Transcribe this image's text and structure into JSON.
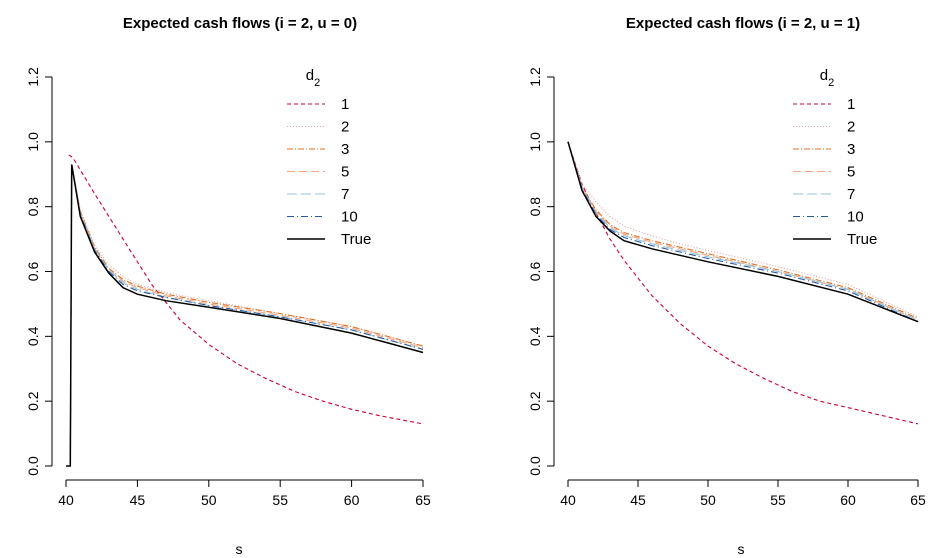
{
  "chart_data": [
    {
      "type": "line",
      "title": "Expected cash flows (i = 2, u = 0)",
      "xlabel": "s",
      "ylabel": "",
      "xlim": [
        40,
        65
      ],
      "ylim": [
        0,
        1.2
      ],
      "xticks": [
        "40",
        "45",
        "50",
        "55",
        "60",
        "65"
      ],
      "yticks": [
        "0.0",
        "0.2",
        "0.4",
        "0.6",
        "0.8",
        "1.0",
        "1.2"
      ],
      "legend": {
        "title_base": "d",
        "title_sub": "2",
        "position": "top-right"
      },
      "series": [
        {
          "name": "1",
          "color": "#cc0033",
          "dash": "4,3",
          "x": [
            40.2,
            40.5,
            42,
            44,
            46,
            48,
            50,
            52,
            54,
            56,
            58,
            60,
            62,
            65
          ],
          "y": [
            0.96,
            0.95,
            0.84,
            0.7,
            0.56,
            0.45,
            0.375,
            0.315,
            0.27,
            0.23,
            0.2,
            0.175,
            0.155,
            0.13
          ]
        },
        {
          "name": "2",
          "color": "#e8a0a0",
          "dash": "1,2",
          "x": [
            40,
            40.3,
            40.4,
            41,
            42,
            43,
            44,
            45,
            47,
            50,
            55,
            60,
            65
          ],
          "y": [
            0,
            0,
            0.93,
            0.79,
            0.68,
            0.62,
            0.585,
            0.56,
            0.535,
            0.51,
            0.47,
            0.43,
            0.37
          ]
        },
        {
          "name": "3",
          "color": "#e07020",
          "dash": "6,2,1,2",
          "x": [
            40,
            40.3,
            40.4,
            41,
            42,
            43,
            44,
            45,
            47,
            50,
            55,
            60,
            65
          ],
          "y": [
            0,
            0,
            0.93,
            0.785,
            0.675,
            0.61,
            0.575,
            0.555,
            0.53,
            0.505,
            0.47,
            0.43,
            0.37
          ]
        },
        {
          "name": "5",
          "color": "#f4a582",
          "dash": "8,4",
          "x": [
            40,
            40.3,
            40.4,
            41,
            42,
            43,
            44,
            45,
            47,
            50,
            55,
            60,
            65
          ],
          "y": [
            0,
            0,
            0.93,
            0.78,
            0.67,
            0.605,
            0.57,
            0.55,
            0.525,
            0.5,
            0.465,
            0.425,
            0.365
          ]
        },
        {
          "name": "7",
          "color": "#92c5de",
          "dash": "10,4",
          "x": [
            40,
            40.3,
            40.4,
            41,
            42,
            43,
            44,
            45,
            47,
            50,
            55,
            60,
            65
          ],
          "y": [
            0,
            0,
            0.93,
            0.78,
            0.67,
            0.605,
            0.565,
            0.545,
            0.52,
            0.495,
            0.46,
            0.42,
            0.36
          ]
        },
        {
          "name": "10",
          "color": "#2c5aa0",
          "dash": "7,3,1,3",
          "x": [
            40,
            40.3,
            40.4,
            41,
            42,
            43,
            44,
            45,
            47,
            50,
            55,
            60,
            65
          ],
          "y": [
            0,
            0,
            0.93,
            0.775,
            0.665,
            0.6,
            0.56,
            0.54,
            0.52,
            0.495,
            0.46,
            0.42,
            0.36
          ]
        },
        {
          "name": "True",
          "color": "#000000",
          "dash": "",
          "x": [
            40,
            40.3,
            40.4,
            41,
            42,
            43,
            44,
            45,
            47,
            50,
            55,
            60,
            65
          ],
          "y": [
            0,
            0,
            0.93,
            0.77,
            0.66,
            0.595,
            0.55,
            0.53,
            0.51,
            0.49,
            0.455,
            0.41,
            0.35
          ]
        }
      ]
    },
    {
      "type": "line",
      "title": "Expected cash flows (i = 2, u = 1)",
      "xlabel": "s",
      "ylabel": "",
      "xlim": [
        40,
        65
      ],
      "ylim": [
        0,
        1.2
      ],
      "xticks": [
        "40",
        "45",
        "50",
        "55",
        "60",
        "65"
      ],
      "yticks": [
        "0.0",
        "0.2",
        "0.4",
        "0.6",
        "0.8",
        "1.0",
        "1.2"
      ],
      "legend": {
        "title_base": "d",
        "title_sub": "2",
        "position": "top-right"
      },
      "series": [
        {
          "name": "1",
          "color": "#cc0033",
          "dash": "4,3",
          "x": [
            40,
            41,
            42,
            43,
            44,
            46,
            48,
            50,
            52,
            54,
            56,
            58,
            60,
            62,
            65
          ],
          "y": [
            1.0,
            0.87,
            0.78,
            0.7,
            0.635,
            0.525,
            0.44,
            0.37,
            0.315,
            0.27,
            0.23,
            0.2,
            0.18,
            0.16,
            0.13
          ]
        },
        {
          "name": "2",
          "color": "#e8a0a0",
          "dash": "1,2",
          "x": [
            40,
            41,
            42,
            43,
            44,
            46,
            48,
            50,
            55,
            60,
            65
          ],
          "y": [
            1.0,
            0.87,
            0.815,
            0.77,
            0.74,
            0.71,
            0.685,
            0.665,
            0.615,
            0.56,
            0.46
          ]
        },
        {
          "name": "3",
          "color": "#e07020",
          "dash": "6,2,1,2",
          "x": [
            40,
            41,
            42,
            43,
            44,
            46,
            48,
            50,
            55,
            60,
            65
          ],
          "y": [
            1.0,
            0.86,
            0.79,
            0.745,
            0.72,
            0.695,
            0.675,
            0.655,
            0.605,
            0.55,
            0.455
          ]
        },
        {
          "name": "5",
          "color": "#f4a582",
          "dash": "8,4",
          "x": [
            40,
            41,
            42,
            43,
            44,
            46,
            48,
            50,
            55,
            60,
            65
          ],
          "y": [
            1.0,
            0.86,
            0.785,
            0.74,
            0.715,
            0.69,
            0.67,
            0.65,
            0.6,
            0.545,
            0.45
          ]
        },
        {
          "name": "7",
          "color": "#92c5de",
          "dash": "10,4",
          "x": [
            40,
            41,
            42,
            43,
            44,
            46,
            48,
            50,
            55,
            60,
            65
          ],
          "y": [
            1.0,
            0.86,
            0.78,
            0.735,
            0.71,
            0.685,
            0.665,
            0.645,
            0.6,
            0.545,
            0.45
          ]
        },
        {
          "name": "10",
          "color": "#2c5aa0",
          "dash": "7,3,1,3",
          "x": [
            40,
            41,
            42,
            43,
            44,
            46,
            48,
            50,
            55,
            60,
            65
          ],
          "y": [
            1.0,
            0.855,
            0.775,
            0.73,
            0.705,
            0.68,
            0.66,
            0.64,
            0.595,
            0.54,
            0.445
          ]
        },
        {
          "name": "True",
          "color": "#000000",
          "dash": "",
          "x": [
            40,
            41,
            42,
            43,
            44,
            46,
            48,
            50,
            55,
            60,
            65
          ],
          "y": [
            1.0,
            0.85,
            0.77,
            0.725,
            0.695,
            0.67,
            0.65,
            0.63,
            0.585,
            0.53,
            0.445
          ]
        }
      ]
    }
  ]
}
